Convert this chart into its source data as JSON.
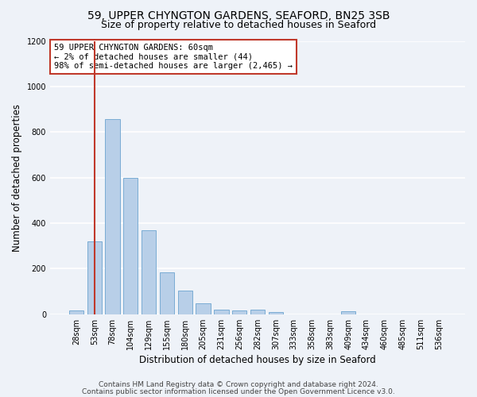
{
  "title1": "59, UPPER CHYNGTON GARDENS, SEAFORD, BN25 3SB",
  "title2": "Size of property relative to detached houses in Seaford",
  "xlabel": "Distribution of detached houses by size in Seaford",
  "ylabel": "Number of detached properties",
  "categories": [
    "28sqm",
    "53sqm",
    "78sqm",
    "104sqm",
    "129sqm",
    "155sqm",
    "180sqm",
    "205sqm",
    "231sqm",
    "256sqm",
    "282sqm",
    "307sqm",
    "333sqm",
    "358sqm",
    "383sqm",
    "409sqm",
    "434sqm",
    "460sqm",
    "485sqm",
    "511sqm",
    "536sqm"
  ],
  "values": [
    18,
    320,
    855,
    600,
    370,
    185,
    105,
    47,
    22,
    18,
    20,
    10,
    0,
    0,
    0,
    12,
    0,
    0,
    0,
    0,
    0
  ],
  "bar_color": "#b8cfe8",
  "bar_edge_color": "#7aacd4",
  "highlight_bar_index": 1,
  "highlight_line_color": "#c0392b",
  "annotation_text": "59 UPPER CHYNGTON GARDENS: 60sqm\n← 2% of detached houses are smaller (44)\n98% of semi-detached houses are larger (2,465) →",
  "annotation_box_color": "#c0392b",
  "ylim": [
    0,
    1200
  ],
  "yticks": [
    0,
    200,
    400,
    600,
    800,
    1000,
    1200
  ],
  "footnote1": "Contains HM Land Registry data © Crown copyright and database right 2024.",
  "footnote2": "Contains public sector information licensed under the Open Government Licence v3.0.",
  "bg_color": "#eef2f8",
  "title1_fontsize": 10,
  "title2_fontsize": 9,
  "axis_label_fontsize": 8.5,
  "tick_fontsize": 7,
  "footnote_fontsize": 6.5,
  "annotation_fontsize": 7.5
}
